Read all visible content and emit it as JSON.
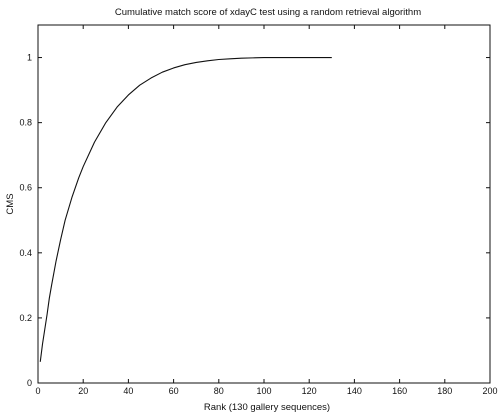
{
  "chart_data": {
    "type": "line",
    "title": "Cumulative match score of xdayC test  using a random retrieval algorithm",
    "xlabel": "Rank (130 gallery sequences)",
    "ylabel": "CMS",
    "xlim": [
      0,
      200
    ],
    "ylim": [
      0,
      1.1
    ],
    "x_ticks": [
      0,
      20,
      40,
      60,
      80,
      100,
      120,
      140,
      160,
      180,
      200
    ],
    "y_ticks": [
      0,
      0.2,
      0.4,
      0.6,
      0.8,
      1
    ],
    "x_tick_labels": [
      "0",
      "20",
      "40",
      "60",
      "80",
      "100",
      "120",
      "140",
      "160",
      "180",
      "200"
    ],
    "y_tick_labels": [
      "0",
      "0.2",
      "0.4",
      "0.6",
      "0.8",
      "1"
    ],
    "grid": false,
    "legend": "none",
    "series": [
      {
        "line_color": "#111111",
        "x": [
          1,
          2,
          3,
          4,
          5,
          6,
          8,
          10,
          12,
          15,
          18,
          20,
          25,
          30,
          35,
          40,
          45,
          50,
          55,
          60,
          65,
          70,
          75,
          80,
          85,
          90,
          95,
          100,
          105,
          110,
          115,
          120,
          125,
          130
        ],
        "y": [
          0.065,
          0.12,
          0.165,
          0.21,
          0.26,
          0.3,
          0.375,
          0.44,
          0.5,
          0.57,
          0.63,
          0.665,
          0.74,
          0.8,
          0.848,
          0.885,
          0.915,
          0.937,
          0.955,
          0.968,
          0.978,
          0.985,
          0.99,
          0.994,
          0.996,
          0.998,
          0.999,
          1.0,
          1.0,
          1.0,
          1.0,
          1.0,
          1.0,
          1.0
        ]
      }
    ]
  }
}
